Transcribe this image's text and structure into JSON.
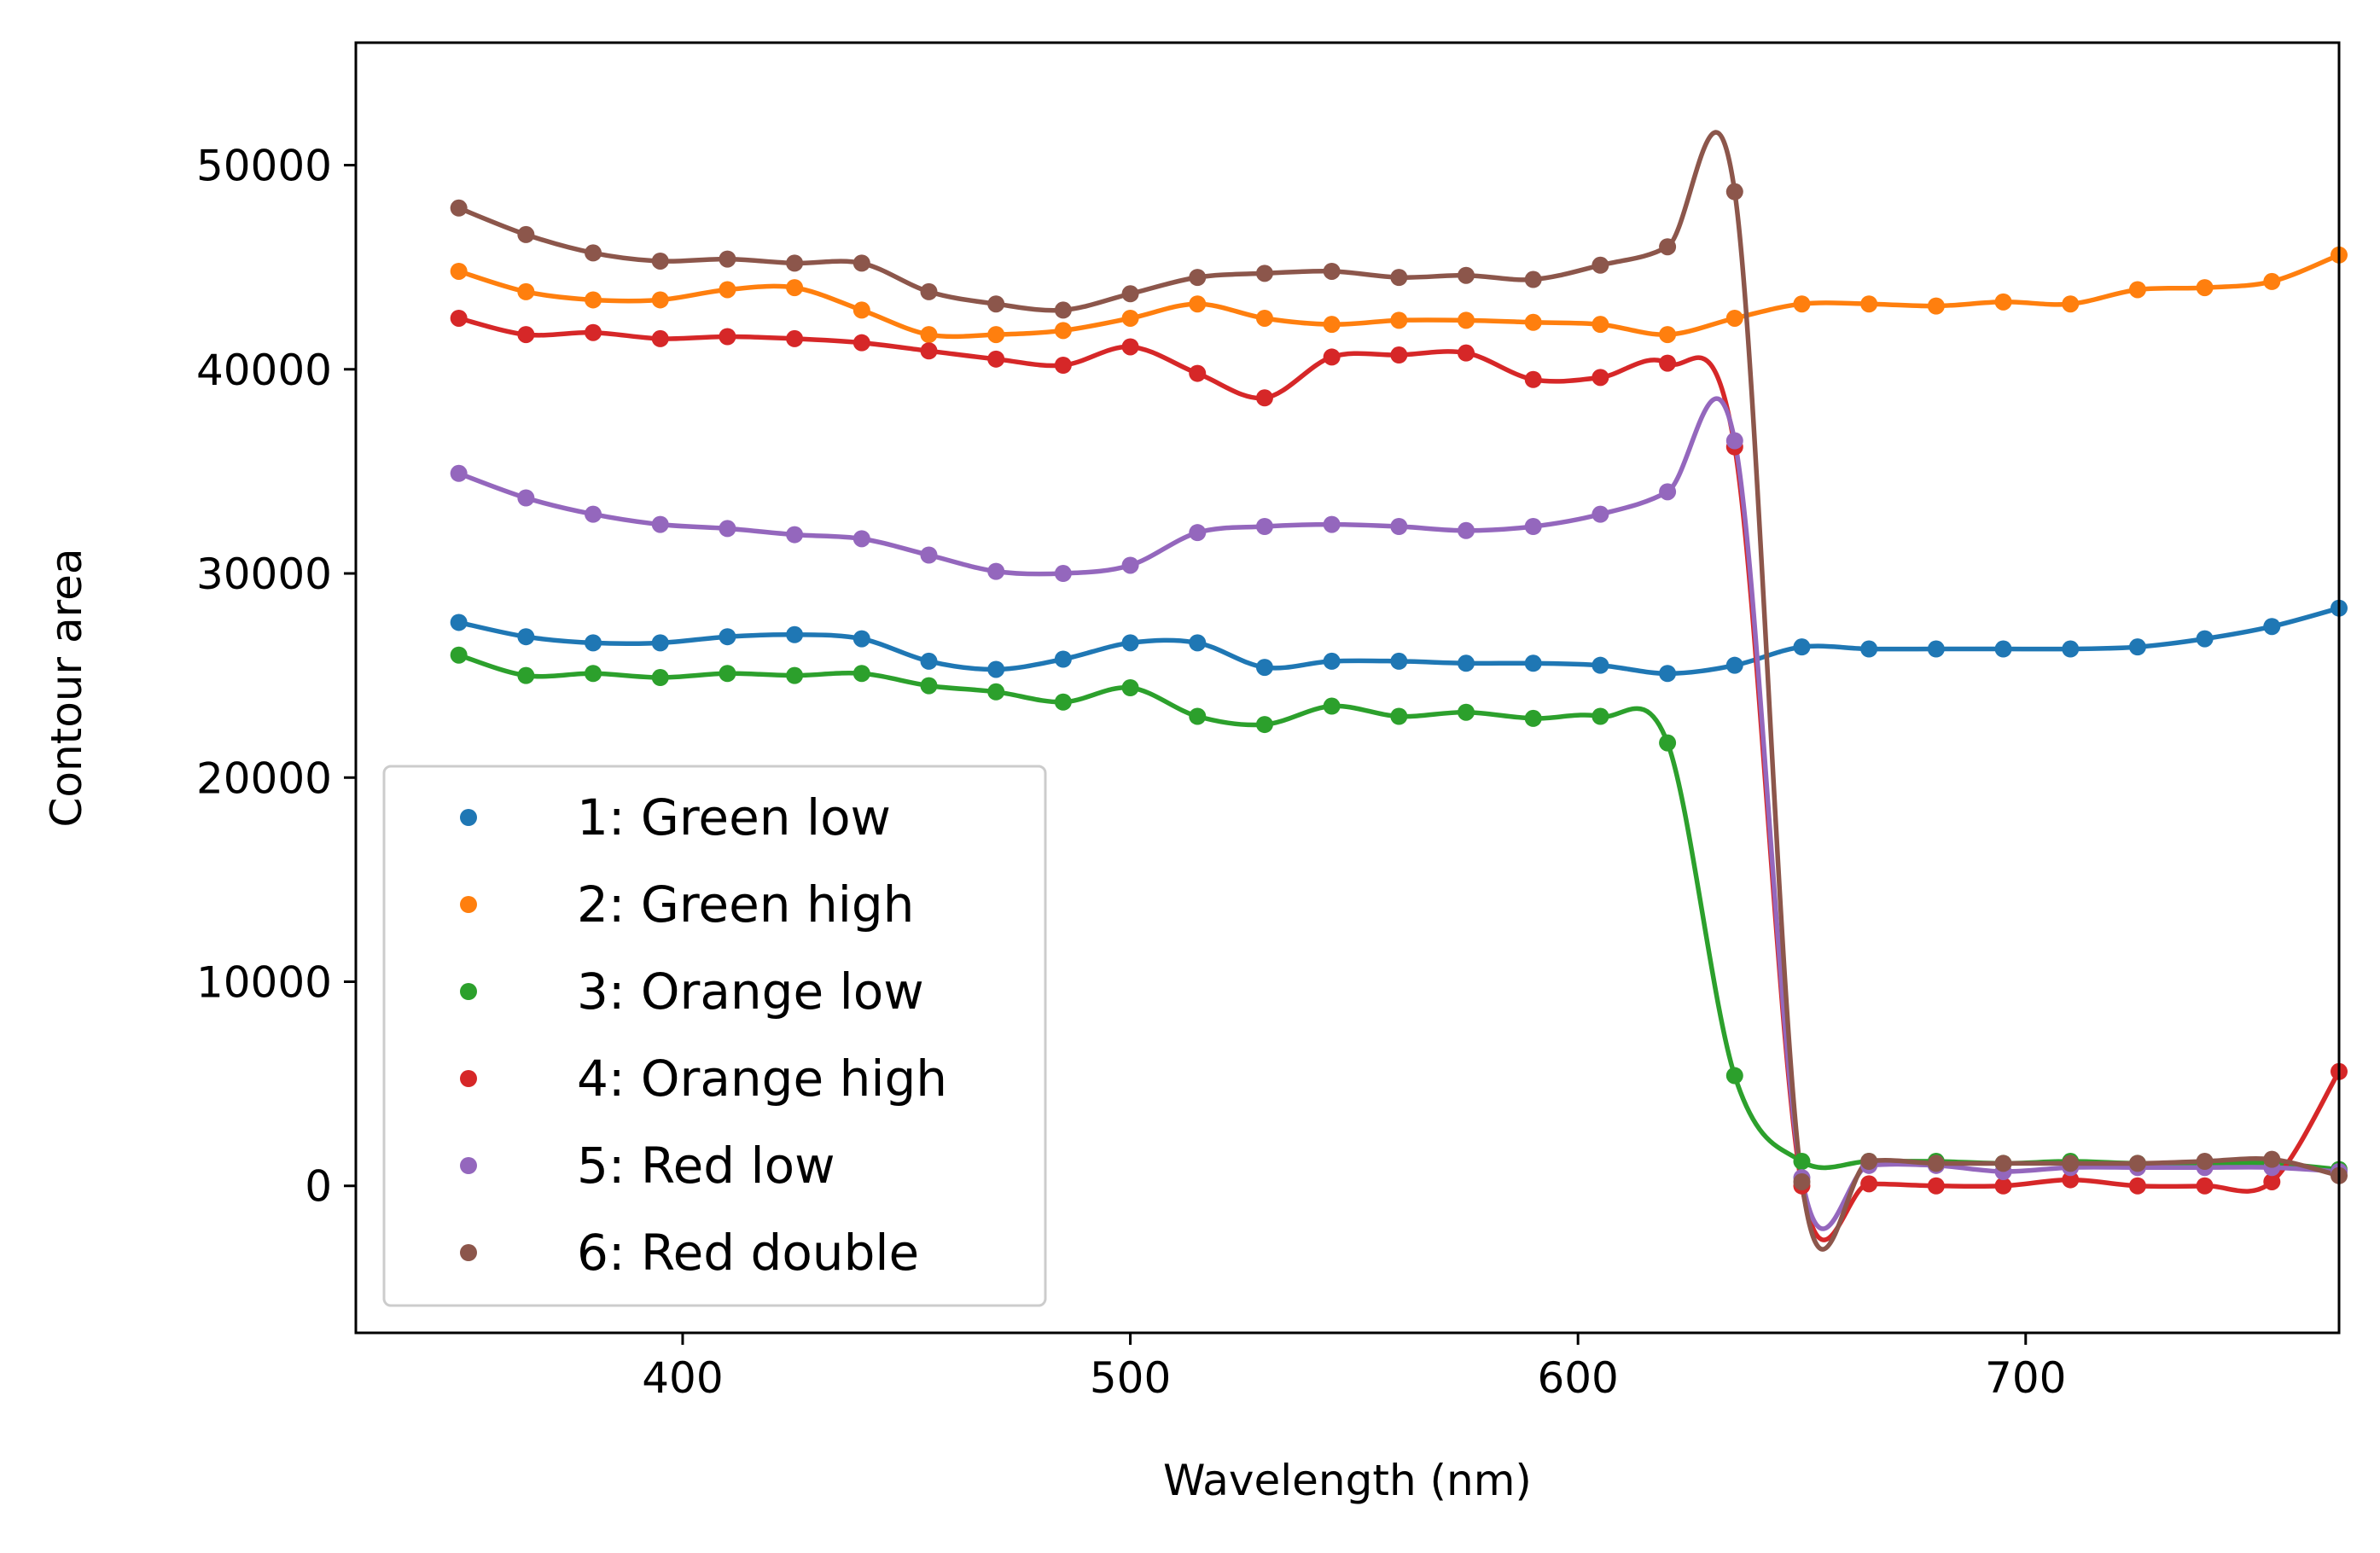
{
  "chart_data": {
    "type": "line",
    "xlabel": "Wavelength (nm)",
    "ylabel": "Contour area",
    "xlim": [
      327,
      770
    ],
    "ylim": [
      -7200,
      56000
    ],
    "xticks": [
      400,
      500,
      600,
      700
    ],
    "yticks": [
      0,
      10000,
      20000,
      30000,
      40000,
      50000
    ],
    "grid": false,
    "legend_position": "lower-left",
    "x": [
      350,
      365,
      380,
      395,
      410,
      425,
      440,
      455,
      470,
      485,
      500,
      515,
      530,
      545,
      560,
      575,
      590,
      605,
      620,
      635,
      650,
      665,
      680,
      695,
      710,
      725,
      740,
      755,
      770
    ],
    "series": [
      {
        "name": "1: Green low",
        "color": "#1f77b4",
        "values": [
          27600,
          26900,
          26600,
          26600,
          26900,
          27000,
          26800,
          25700,
          25300,
          25800,
          26600,
          26600,
          25400,
          25700,
          25700,
          25600,
          25600,
          25500,
          25100,
          25500,
          26400,
          26300,
          26300,
          26300,
          26300,
          26400,
          26800,
          27400,
          28300
        ]
      },
      {
        "name": "2: Green high",
        "color": "#ff7f0e",
        "values": [
          44800,
          43800,
          43400,
          43400,
          43900,
          44000,
          42900,
          41700,
          41700,
          41900,
          42500,
          43200,
          42500,
          42200,
          42400,
          42400,
          42300,
          42200,
          41700,
          42500,
          43200,
          43200,
          43100,
          43300,
          43200,
          43900,
          44000,
          44300,
          45600
        ]
      },
      {
        "name": "3: Orange low",
        "color": "#2ca02c",
        "values": [
          26000,
          25000,
          25100,
          24900,
          25100,
          25000,
          25100,
          24500,
          24200,
          23700,
          24400,
          23000,
          22600,
          23500,
          23000,
          23200,
          22900,
          23000,
          21700,
          5400,
          1200,
          1200,
          1200,
          1100,
          1200,
          1100,
          1100,
          1100,
          800
        ]
      },
      {
        "name": "4: Orange high",
        "color": "#d62728",
        "values": [
          42500,
          41700,
          41800,
          41500,
          41600,
          41500,
          41300,
          40900,
          40500,
          40200,
          41100,
          39800,
          38600,
          40600,
          40700,
          40800,
          39500,
          39600,
          40300,
          36200,
          0,
          100,
          0,
          0,
          300,
          0,
          0,
          200,
          5600
        ]
      },
      {
        "name": "5: Red low",
        "color": "#9467bd",
        "values": [
          34900,
          33700,
          32900,
          32400,
          32200,
          31900,
          31700,
          30900,
          30100,
          30000,
          30400,
          32000,
          32300,
          32400,
          32300,
          32100,
          32300,
          32900,
          34000,
          36500,
          400,
          1000,
          1000,
          700,
          900,
          900,
          900,
          900,
          700
        ]
      },
      {
        "name": "6: Red double",
        "color": "#8c564b",
        "values": [
          47900,
          46600,
          45700,
          45300,
          45400,
          45200,
          45200,
          43800,
          43200,
          42900,
          43700,
          44500,
          44700,
          44800,
          44500,
          44600,
          44400,
          45100,
          46000,
          48700,
          200,
          1200,
          1100,
          1100,
          1100,
          1100,
          1200,
          1300,
          500
        ]
      }
    ]
  }
}
